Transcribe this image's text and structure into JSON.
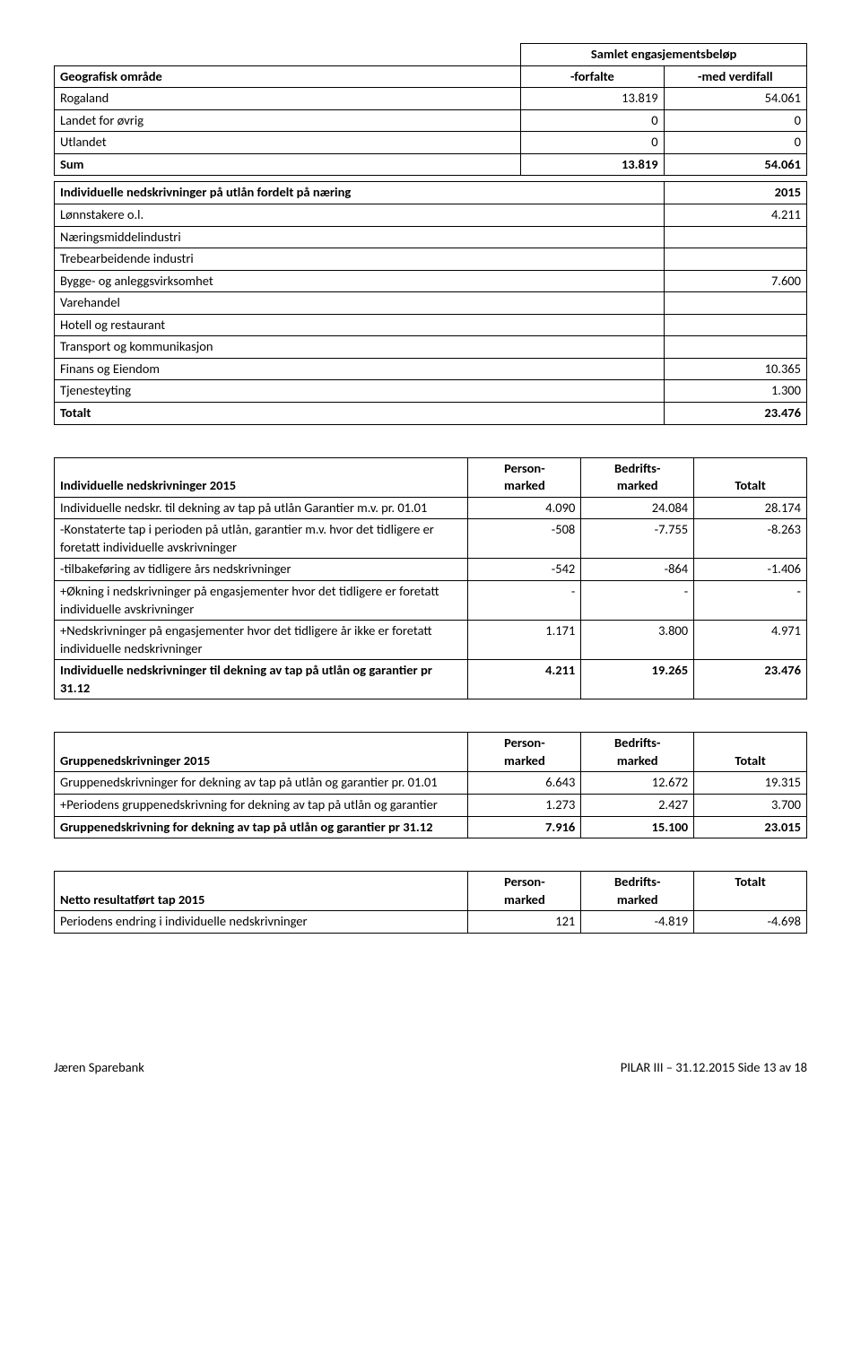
{
  "t1": {
    "header1": "Samlet engasjementsbeløp",
    "col0": "Geografisk område",
    "col1": "-forfalte",
    "col2": "-med verdifall",
    "rows": [
      {
        "l": "Rogaland",
        "a": "13.819",
        "b": "54.061"
      },
      {
        "l": "Landet for øvrig",
        "a": "0",
        "b": "0"
      },
      {
        "l": "Utlandet",
        "a": "0",
        "b": "0"
      }
    ],
    "sum": {
      "l": "Sum",
      "a": "13.819",
      "b": "54.061"
    }
  },
  "t2": {
    "h": "Individuelle nedskrivninger på utlån fordelt på næring",
    "hv": "2015",
    "rows": [
      {
        "l": "Lønnstakere o.l.",
        "v": "4.211"
      },
      {
        "l": "Næringsmiddelindustri",
        "v": ""
      },
      {
        "l": "Trebearbeidende industri",
        "v": ""
      },
      {
        "l": "Bygge- og anleggsvirksomhet",
        "v": "7.600"
      },
      {
        "l": "Varehandel",
        "v": ""
      },
      {
        "l": "Hotell og restaurant",
        "v": ""
      },
      {
        "l": "Transport og kommunikasjon",
        "v": ""
      },
      {
        "l": "Finans og Eiendom",
        "v": "10.365"
      },
      {
        "l": "Tjenesteyting",
        "v": "1.300"
      }
    ],
    "total": {
      "l": "Totalt",
      "v": "23.476"
    }
  },
  "t3": {
    "h": "Individuelle nedskrivninger 2015",
    "c1a": "Person-",
    "c1b": "marked",
    "c2a": "Bedrifts-",
    "c2b": "marked",
    "c3": "Totalt",
    "rows": [
      {
        "l": "Individuelle nedskr. til dekning av tap på utlån Garantier m.v. pr. 01.01",
        "a": "4.090",
        "b": "24.084",
        "c": "28.174"
      },
      {
        "l": "-Konstaterte tap i perioden på utlån, garantier m.v. hvor det tidligere er foretatt individuelle avskrivninger",
        "a": "-508",
        "b": "-7.755",
        "c": "-8.263"
      },
      {
        "l": "-tilbakeføring av tidligere års nedskrivninger",
        "a": "-542",
        "b": "-864",
        "c": "-1.406"
      },
      {
        "l": "+Økning i nedskrivninger på engasjementer hvor det tidligere er foretatt individuelle avskrivninger",
        "a": "-",
        "b": "-",
        "c": "-"
      },
      {
        "l": "+Nedskrivninger på engasjementer hvor det tidligere år ikke er foretatt individuelle nedskrivninger",
        "a": "1.171",
        "b": "3.800",
        "c": "4.971"
      }
    ],
    "total": {
      "l": "Individuelle nedskrivninger til dekning av tap på utlån og garantier pr 31.12",
      "a": "4.211",
      "b": "19.265",
      "c": "23.476"
    }
  },
  "t4": {
    "h": "Gruppenedskrivninger 2015",
    "c1a": "Person-",
    "c1b": "marked",
    "c2a": "Bedrifts-",
    "c2b": "marked",
    "c3": "Totalt",
    "rows": [
      {
        "l": "Gruppenedskrivninger for dekning av tap på utlån og garantier pr. 01.01",
        "a": "6.643",
        "b": "12.672",
        "c": "19.315"
      },
      {
        "l": "+Periodens gruppenedskrivning for dekning av tap på utlån og garantier",
        "a": "1.273",
        "b": "2.427",
        "c": "3.700"
      }
    ],
    "total": {
      "l": "Gruppenedskrivning for dekning av tap på utlån og garantier pr 31.12",
      "a": "7.916",
      "b": "15.100",
      "c": "23.015"
    }
  },
  "t5": {
    "h": "Netto resultatført tap 2015",
    "c1a": "Person-",
    "c1b": "marked",
    "c2a": "Bedrifts-",
    "c2b": "marked",
    "c3": "Totalt",
    "rows": [
      {
        "l": "Periodens endring i individuelle nedskrivninger",
        "a": "121",
        "b": "-4.819",
        "c": "-4.698"
      }
    ]
  },
  "footer": {
    "left": "Jæren Sparebank",
    "right": "PILAR III – 31.12.2015 Side 13 av 18"
  },
  "widths": {
    "t1_col0": "62%",
    "t1_col1": "19%",
    "t1_col2": "19%",
    "t2_col0": "81%",
    "t2_col1": "19%",
    "t3_col0": "55%",
    "t3_colN": "15%"
  }
}
